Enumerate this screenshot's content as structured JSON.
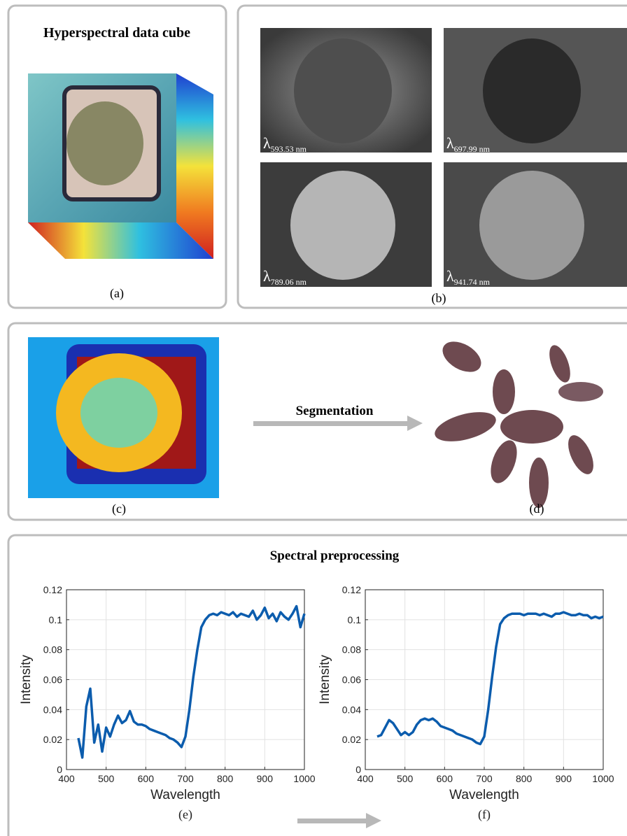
{
  "panels": {
    "a": {
      "title": "Hyperspectral data cube",
      "label": "(a)"
    },
    "b": {
      "label": "(b)",
      "bands": [
        {
          "symbol": "λ",
          "subscript": "593.53 nm"
        },
        {
          "symbol": "λ",
          "subscript": "697.99 nm"
        },
        {
          "symbol": "λ",
          "subscript": "789.06 nm"
        },
        {
          "symbol": "λ",
          "subscript": "941.74 nm"
        }
      ]
    },
    "c": {
      "label": "(c)"
    },
    "arrow_text": "Segmentation",
    "d": {
      "label": "(d)"
    },
    "preprocessing_title": "Spectral preprocessing"
  },
  "chart_data": [
    {
      "type": "line",
      "label": "(e)",
      "xlabel": "Wavelength",
      "ylabel": "Intensity",
      "color": "#0b5cad",
      "grid": true,
      "x": [
        430,
        440,
        450,
        460,
        470,
        480,
        490,
        500,
        510,
        520,
        530,
        540,
        550,
        560,
        570,
        580,
        590,
        600,
        610,
        620,
        630,
        640,
        650,
        660,
        670,
        680,
        690,
        700,
        710,
        720,
        730,
        740,
        750,
        760,
        770,
        780,
        790,
        800,
        810,
        820,
        830,
        840,
        850,
        860,
        870,
        880,
        890,
        900,
        910,
        920,
        930,
        940,
        950,
        960,
        970,
        980,
        990,
        1000
      ],
      "values": [
        0.021,
        0.008,
        0.042,
        0.054,
        0.018,
        0.03,
        0.012,
        0.028,
        0.022,
        0.03,
        0.036,
        0.031,
        0.033,
        0.039,
        0.032,
        0.03,
        0.03,
        0.029,
        0.027,
        0.026,
        0.025,
        0.024,
        0.023,
        0.021,
        0.02,
        0.018,
        0.015,
        0.022,
        0.04,
        0.062,
        0.08,
        0.095,
        0.1,
        0.103,
        0.104,
        0.103,
        0.105,
        0.104,
        0.103,
        0.105,
        0.102,
        0.104,
        0.103,
        0.102,
        0.106,
        0.1,
        0.103,
        0.108,
        0.101,
        0.104,
        0.099,
        0.105,
        0.102,
        0.1,
        0.104,
        0.109,
        0.095,
        0.104
      ],
      "xlim": [
        400,
        1000
      ],
      "xticks": [
        400,
        500,
        600,
        700,
        800,
        900,
        1000
      ],
      "ylim": [
        0,
        0.12
      ],
      "yticks": [
        0,
        0.02,
        0.04,
        0.06,
        0.08,
        0.1,
        0.12
      ]
    },
    {
      "type": "line",
      "label": "(f)",
      "xlabel": "Wavelength",
      "ylabel": "Intensity",
      "color": "#0b5cad",
      "grid": true,
      "x": [
        430,
        440,
        450,
        460,
        470,
        480,
        490,
        500,
        510,
        520,
        530,
        540,
        550,
        560,
        570,
        580,
        590,
        600,
        610,
        620,
        630,
        640,
        650,
        660,
        670,
        680,
        690,
        700,
        710,
        720,
        730,
        740,
        750,
        760,
        770,
        780,
        790,
        800,
        810,
        820,
        830,
        840,
        850,
        860,
        870,
        880,
        890,
        900,
        910,
        920,
        930,
        940,
        950,
        960,
        970,
        980,
        990,
        1000
      ],
      "values": [
        0.022,
        0.023,
        0.028,
        0.033,
        0.031,
        0.027,
        0.023,
        0.025,
        0.023,
        0.025,
        0.03,
        0.033,
        0.034,
        0.033,
        0.034,
        0.032,
        0.029,
        0.028,
        0.027,
        0.026,
        0.024,
        0.023,
        0.022,
        0.021,
        0.02,
        0.018,
        0.017,
        0.022,
        0.04,
        0.062,
        0.082,
        0.097,
        0.101,
        0.103,
        0.104,
        0.104,
        0.104,
        0.103,
        0.104,
        0.104,
        0.104,
        0.103,
        0.104,
        0.103,
        0.102,
        0.104,
        0.104,
        0.105,
        0.104,
        0.103,
        0.103,
        0.104,
        0.103,
        0.103,
        0.101,
        0.102,
        0.101,
        0.102
      ],
      "xlim": [
        400,
        1000
      ],
      "xticks": [
        400,
        500,
        600,
        700,
        800,
        900,
        1000
      ],
      "ylim": [
        0,
        0.12
      ],
      "yticks": [
        0,
        0.02,
        0.04,
        0.06,
        0.08,
        0.1,
        0.12
      ]
    }
  ]
}
